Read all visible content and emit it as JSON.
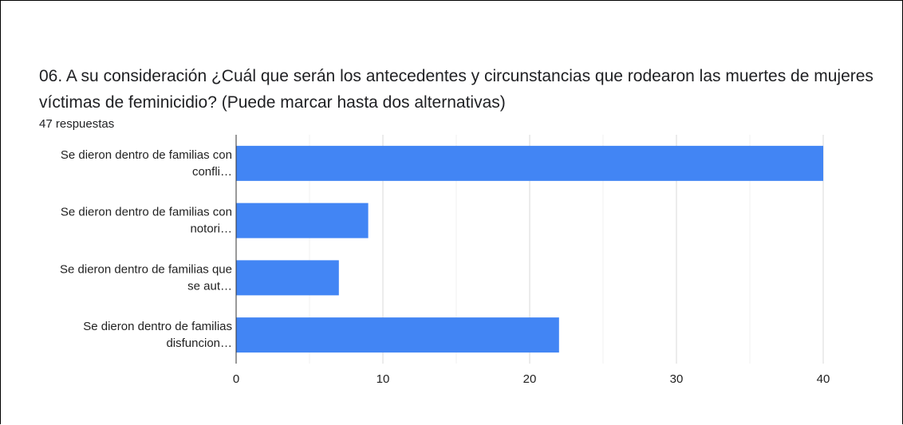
{
  "chart_data": {
    "type": "hbar",
    "title": "06. A su consideración ¿Cuál que serán los antecedentes y circunstancias que rodearon las muertes de mujeres víctimas de feminicidio? (Puede marcar hasta dos alternativas)",
    "subtitle": "47 respuestas",
    "categories": [
      [
        "Se dieron dentro de familias con",
        "confli…"
      ],
      [
        "Se dieron dentro de familias con",
        "notori…"
      ],
      [
        "Se dieron dentro de familias que",
        "se aut…"
      ],
      [
        "Se dieron dentro de familias",
        "disfuncion…"
      ]
    ],
    "values": [
      40,
      9,
      7,
      22
    ],
    "color": "#4285f4",
    "xlim": [
      0,
      40
    ],
    "xticks": [
      0,
      10,
      20,
      30,
      40
    ],
    "xminorticks": [
      5,
      15,
      25,
      35
    ],
    "grid": true
  }
}
